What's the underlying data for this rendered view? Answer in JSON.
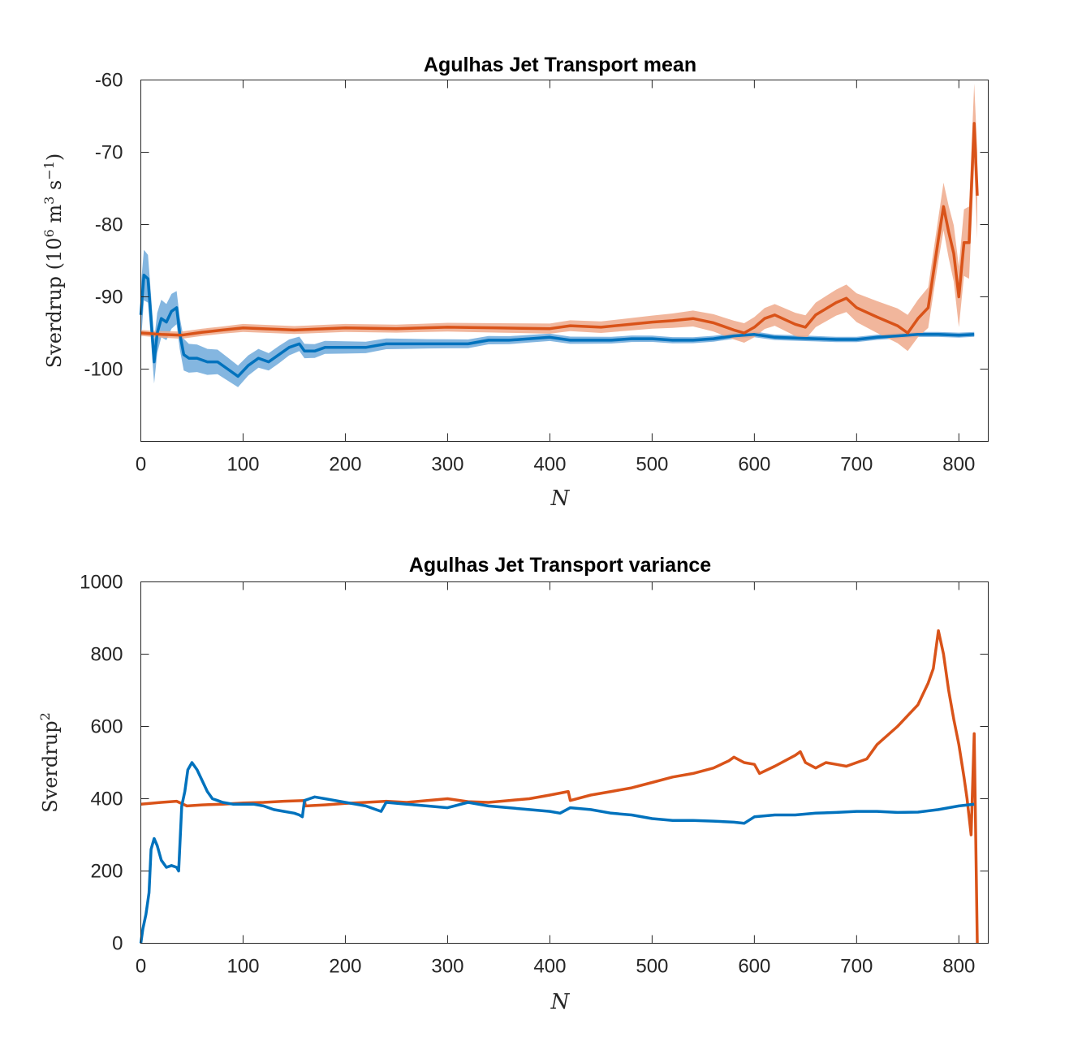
{
  "colors": {
    "blue": "#0072BD",
    "orange": "#D95319",
    "blue_band": "#6FA9DA",
    "orange_band": "#EFA98B"
  },
  "chart_data": [
    {
      "type": "line",
      "title": "Agulhas Jet Transport mean",
      "xlabel": "N",
      "ylabel": "Sverdrup (10⁶ m³ s⁻¹)",
      "ylabel_base": "Sverdrup (10",
      "ylabel_sup1": "6",
      "ylabel_mid": " m",
      "ylabel_sup2": "3",
      "ylabel_s": " s",
      "ylabel_sup3": "−1",
      "ylabel_end": ")",
      "xlim": [
        0,
        820
      ],
      "ylim": [
        -110,
        -60
      ],
      "xticks": [
        0,
        100,
        200,
        300,
        400,
        500,
        600,
        700,
        800
      ],
      "xtick_labels": [
        "0",
        "100",
        "200",
        "300",
        "400",
        "500",
        "600",
        "700",
        "800"
      ],
      "yticks": [
        -60,
        -70,
        -80,
        -90,
        -100
      ],
      "ytick_labels": [
        "-60",
        "-70",
        "-80",
        "-90",
        "-100"
      ],
      "grid": false,
      "series": [
        {
          "color": "blue",
          "x": [
            0,
            3,
            7,
            10,
            13,
            16,
            20,
            25,
            30,
            35,
            38,
            42,
            47,
            55,
            65,
            75,
            85,
            95,
            105,
            115,
            125,
            135,
            145,
            155,
            160,
            170,
            180,
            200,
            220,
            240,
            260,
            280,
            300,
            320,
            340,
            360,
            380,
            400,
            420,
            440,
            460,
            480,
            500,
            520,
            540,
            560,
            580,
            600,
            620,
            640,
            660,
            680,
            700,
            720,
            740,
            760,
            780,
            800,
            815
          ],
          "y": [
            -92.5,
            -87,
            -87.5,
            -93,
            -99,
            -95,
            -93,
            -93.5,
            -92,
            -91.5,
            -95,
            -98,
            -98.5,
            -98.5,
            -99,
            -99,
            -100,
            -101,
            -99.5,
            -98.5,
            -99,
            -98,
            -97,
            -96.5,
            -97.5,
            -97.5,
            -97,
            -97,
            -97,
            -96.5,
            -96.5,
            -96.5,
            -96.5,
            -96.5,
            -96,
            -96,
            -95.8,
            -95.6,
            -96,
            -96,
            -96,
            -95.8,
            -95.8,
            -96,
            -96,
            -95.8,
            -95.4,
            -95.2,
            -95.6,
            -95.7,
            -95.8,
            -95.9,
            -95.9,
            -95.6,
            -95.4,
            -95.2,
            -95.2,
            -95.3,
            -95.2
          ],
          "band": [
            4.0,
            3.5,
            3.3,
            3.2,
            3.0,
            2.8,
            2.6,
            2.5,
            2.4,
            2.3,
            2.2,
            2.2,
            2.0,
            1.9,
            1.8,
            1.7,
            1.6,
            1.5,
            1.4,
            1.3,
            1.2,
            1.2,
            1.1,
            1.0,
            1.0,
            0.95,
            0.9,
            0.85,
            0.8,
            0.75,
            0.7,
            0.65,
            0.62,
            0.6,
            0.57,
            0.55,
            0.53,
            0.51,
            0.5,
            0.48,
            0.46,
            0.45,
            0.44,
            0.43,
            0.42,
            0.41,
            0.4,
            0.39,
            0.38,
            0.38,
            0.37,
            0.37,
            0.36,
            0.36,
            0.35,
            0.35,
            0.35,
            0.34,
            0.34
          ]
        },
        {
          "color": "orange",
          "x": [
            0,
            20,
            40,
            60,
            80,
            100,
            150,
            200,
            250,
            300,
            350,
            400,
            420,
            450,
            500,
            520,
            540,
            560,
            580,
            590,
            600,
            610,
            620,
            640,
            650,
            660,
            680,
            690,
            700,
            720,
            740,
            750,
            760,
            770,
            780,
            785,
            790,
            795,
            800,
            805,
            810,
            815,
            818
          ],
          "y": [
            -95,
            -95.2,
            -95.3,
            -94.9,
            -94.6,
            -94.3,
            -94.6,
            -94.3,
            -94.4,
            -94.2,
            -94.3,
            -94.4,
            -94.0,
            -94.2,
            -93.5,
            -93.3,
            -93.0,
            -93.6,
            -94.6,
            -95.0,
            -94.2,
            -93.0,
            -92.5,
            -93.8,
            -94.2,
            -92.5,
            -90.8,
            -90.2,
            -91.5,
            -92.8,
            -94.0,
            -95.0,
            -93.0,
            -91.5,
            -82.0,
            -77.5,
            -81.0,
            -84.0,
            -90.0,
            -82.5,
            -82.5,
            -66.0,
            -76.0
          ],
          "band": [
            0.4,
            0.45,
            0.5,
            0.5,
            0.5,
            0.55,
            0.55,
            0.55,
            0.55,
            0.6,
            0.65,
            0.7,
            0.75,
            0.8,
            0.9,
            1.0,
            1.1,
            1.2,
            1.3,
            1.35,
            1.4,
            1.45,
            1.5,
            1.6,
            1.65,
            1.7,
            1.8,
            1.9,
            2.0,
            2.2,
            2.4,
            2.5,
            2.6,
            2.8,
            3.0,
            3.3,
            3.6,
            3.9,
            4.2,
            4.6,
            5.0,
            5.5,
            6.0
          ]
        }
      ]
    },
    {
      "type": "line",
      "title": "Agulhas Jet Transport variance",
      "xlabel": "N",
      "ylabel": "Sverdrup²",
      "ylabel_base": "Sverdrup",
      "ylabel_sup1": "2",
      "xlim": [
        0,
        820
      ],
      "ylim": [
        0,
        1000
      ],
      "xticks": [
        0,
        100,
        200,
        300,
        400,
        500,
        600,
        700,
        800
      ],
      "xtick_labels": [
        "0",
        "100",
        "200",
        "300",
        "400",
        "500",
        "600",
        "700",
        "800"
      ],
      "yticks": [
        0,
        200,
        400,
        600,
        800,
        1000
      ],
      "ytick_labels": [
        "0",
        "200",
        "400",
        "600",
        "800",
        "1000"
      ],
      "grid": false,
      "series": [
        {
          "color": "blue",
          "x": [
            0,
            2,
            5,
            8,
            10,
            13,
            16,
            20,
            25,
            30,
            35,
            37,
            40,
            43,
            46,
            50,
            55,
            60,
            65,
            70,
            75,
            80,
            90,
            100,
            110,
            120,
            130,
            140,
            150,
            155,
            158,
            160,
            165,
            170,
            180,
            190,
            200,
            210,
            220,
            230,
            235,
            240,
            260,
            280,
            300,
            320,
            340,
            360,
            380,
            400,
            410,
            420,
            440,
            460,
            480,
            500,
            520,
            540,
            560,
            580,
            590,
            600,
            620,
            640,
            660,
            680,
            700,
            720,
            740,
            760,
            780,
            800,
            815
          ],
          "y": [
            0,
            40,
            80,
            140,
            260,
            290,
            270,
            230,
            210,
            215,
            210,
            200,
            380,
            420,
            480,
            500,
            480,
            450,
            420,
            400,
            395,
            390,
            385,
            385,
            385,
            380,
            370,
            365,
            360,
            355,
            350,
            395,
            400,
            405,
            400,
            395,
            390,
            385,
            380,
            370,
            365,
            390,
            385,
            380,
            375,
            390,
            380,
            375,
            370,
            365,
            360,
            375,
            370,
            360,
            355,
            345,
            340,
            340,
            338,
            335,
            332,
            350,
            355,
            355,
            360,
            362,
            365,
            365,
            362,
            363,
            370,
            380,
            385
          ]
        },
        {
          "color": "orange",
          "x": [
            0,
            20,
            35,
            45,
            60,
            80,
            100,
            120,
            140,
            160,
            161,
            180,
            200,
            220,
            240,
            260,
            280,
            300,
            320,
            340,
            360,
            380,
            400,
            418,
            420,
            440,
            460,
            480,
            500,
            520,
            540,
            560,
            575,
            580,
            590,
            600,
            605,
            620,
            640,
            645,
            650,
            660,
            670,
            680,
            690,
            700,
            710,
            720,
            740,
            760,
            770,
            775,
            780,
            785,
            790,
            795,
            800,
            805,
            808,
            812,
            815,
            818
          ],
          "y": [
            385,
            390,
            393,
            380,
            383,
            385,
            388,
            390,
            393,
            395,
            380,
            383,
            387,
            390,
            393,
            390,
            395,
            400,
            392,
            390,
            395,
            400,
            410,
            420,
            395,
            410,
            420,
            430,
            445,
            460,
            470,
            485,
            505,
            515,
            500,
            495,
            470,
            490,
            520,
            530,
            500,
            485,
            500,
            495,
            490,
            500,
            510,
            550,
            600,
            660,
            720,
            760,
            865,
            800,
            700,
            620,
            550,
            460,
            400,
            300,
            580,
            0
          ]
        }
      ]
    }
  ]
}
